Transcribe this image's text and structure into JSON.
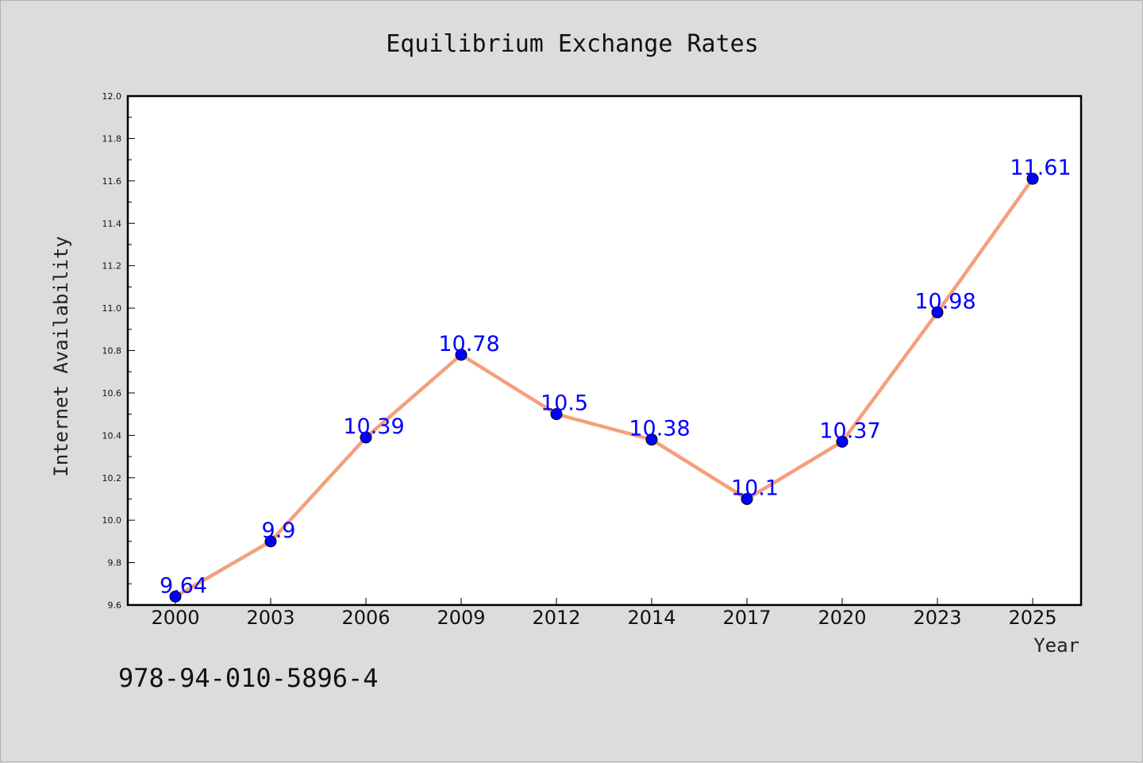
{
  "chart_data": {
    "type": "line",
    "title": "Equilibrium Exchange Rates",
    "xlabel": "Year",
    "ylabel": "Internet Availability",
    "categories": [
      "2000",
      "2003",
      "2006",
      "2009",
      "2012",
      "2014",
      "2017",
      "2020",
      "2023",
      "2025"
    ],
    "series": [
      {
        "values": [
          9.64,
          9.9,
          10.39,
          10.78,
          10.5,
          10.38,
          10.1,
          10.37,
          10.98,
          11.61
        ],
        "line_color": "#f4a07c",
        "marker_color": "#0000ff"
      }
    ],
    "data_labels": [
      "9.64",
      "9.9",
      "10.39",
      "10.78",
      "10.5",
      "10.38",
      "10.1",
      "10.37",
      "10.98",
      "11.61"
    ],
    "ylim": [
      9.6,
      12.0
    ],
    "yticks": [
      "9.6",
      "9.8",
      "10.0",
      "10.2",
      "10.4",
      "10.6",
      "10.8",
      "11.0",
      "11.2",
      "11.4",
      "11.6",
      "11.8",
      "12.0"
    ],
    "grid": false,
    "legend": "none"
  },
  "footer": {
    "text": "978-94-010-5896-4"
  }
}
